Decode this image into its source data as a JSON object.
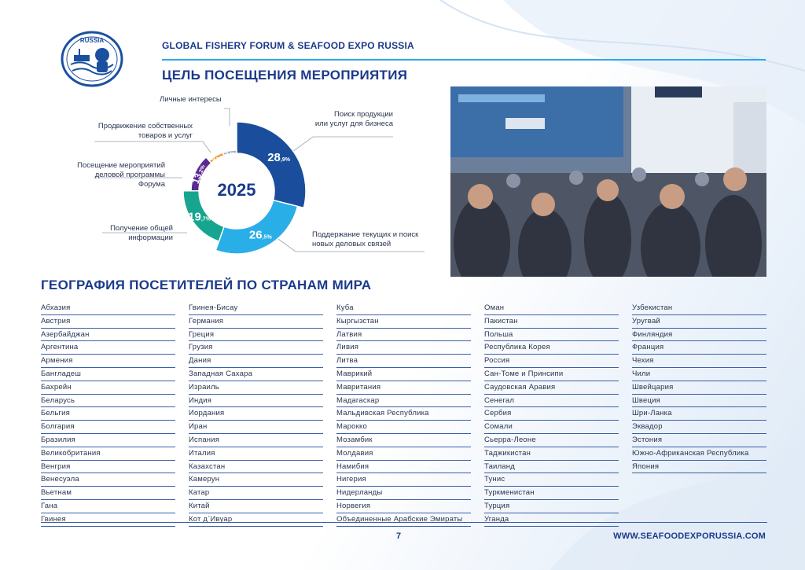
{
  "header": {
    "brand_title": "GLOBAL FISHERY FORUM & SEAFOOD EXPO RUSSIA",
    "logo_text": "RUSSIA"
  },
  "purpose_section": {
    "title": "ЦЕЛЬ ПОСЕЩЕНИЯ МЕРОПРИЯТИЯ"
  },
  "chart_data": {
    "type": "pie",
    "center_label": "2025",
    "slices": [
      {
        "label": "Поиск продукции или услуг для бизнеса",
        "value": 28.9,
        "value_main": "28",
        "value_dec": ",9%",
        "color": "#1a4e9c"
      },
      {
        "label": "Поддержание текущих и поиск новых деловых связей",
        "value": 26.5,
        "value_main": "26",
        "value_dec": ",5%",
        "color": "#2aaee8"
      },
      {
        "label": "Получение общей информации",
        "value": 19.7,
        "value_main": "19",
        "value_dec": ",7%",
        "color": "#17a58f"
      },
      {
        "label": "Посещение мероприятий деловой программы Форума",
        "value": 13.2,
        "value_main": "13",
        "value_dec": ",2%",
        "color": "#5b2a91"
      },
      {
        "label": "Продвижение собственных товаров и услуг",
        "value": 6.3,
        "value_main": "6",
        "value_dec": ",3%",
        "color": "#f0a030"
      },
      {
        "label": "Личные интересы",
        "value": 5.4,
        "value_main": "5",
        "value_dec": ",4%",
        "color": "#a9b3bf"
      }
    ]
  },
  "chart_labels": {
    "personal": "Личные интересы",
    "promotion_1": "Продвижение собственных",
    "promotion_2": "товаров и услуг",
    "program_1": "Посещение мероприятий",
    "program_2": "деловой программы Форума",
    "info_1": "Получение общей",
    "info_2": "информации",
    "search_1": "Поиск продукции",
    "search_2": "или услуг для бизнеса",
    "contacts_1": "Поддержание текущих и поиск",
    "contacts_2": "новых деловых связей"
  },
  "geography_section": {
    "title": "ГЕОГРАФИЯ ПОСЕТИТЕЛЕЙ ПО СТРАНАМ МИРА",
    "columns": [
      [
        "Абхазия",
        "Австрия",
        "Азербайджан",
        "Аргентина",
        "Армения",
        "Бангладеш",
        "Бахрейн",
        "Беларусь",
        "Бельгия",
        "Болгария",
        "Бразилия",
        "Великобритания",
        "Венгрия",
        "Венесуэла",
        "Вьетнам",
        "Гана",
        "Гвинея"
      ],
      [
        "Гвинея-Бисау",
        "Германия",
        "Греция",
        "Грузия",
        "Дания",
        "Западная Сахара",
        "Израиль",
        "Индия",
        "Иордания",
        "Иран",
        "Испания",
        "Италия",
        "Казахстан",
        "Камерун",
        "Катар",
        "Китай",
        "Кот д`Ивуар"
      ],
      [
        "Куба",
        "Кыргызстан",
        "Латвия",
        "Ливия",
        "Литва",
        "Маврикий",
        "Мавритания",
        "Мадагаскар",
        "Мальдивская Республика",
        "Марокко",
        "Мозамбик",
        "Молдавия",
        "Намибия",
        "Нигерия",
        "Нидерланды",
        "Норвегия",
        "Объединенные Арабские Эмираты"
      ],
      [
        "Оман",
        "Пакистан",
        "Польша",
        "Республика Корея",
        "Россия",
        "Сан-Томе и Принсипи",
        "Саудовская Аравия",
        "Сенегал",
        "Сербия",
        "Сомали",
        "Сьерра-Леоне",
        "Таджикистан",
        "Таиланд",
        "Тунис",
        "Туркменистан",
        "Турция",
        "Уганда"
      ],
      [
        "Узбекистан",
        "Уругвай",
        "Финляндия",
        "Франция",
        "Чехия",
        "Чили",
        "Швейцария",
        "Швеция",
        "Шри-Ланка",
        "Эквадор",
        "Эстония",
        "Южно-Африканская Республика",
        "Япония"
      ]
    ]
  },
  "footer": {
    "page_number": "7",
    "website": "WWW.SEAFOODEXPORUSSIA.COM"
  }
}
